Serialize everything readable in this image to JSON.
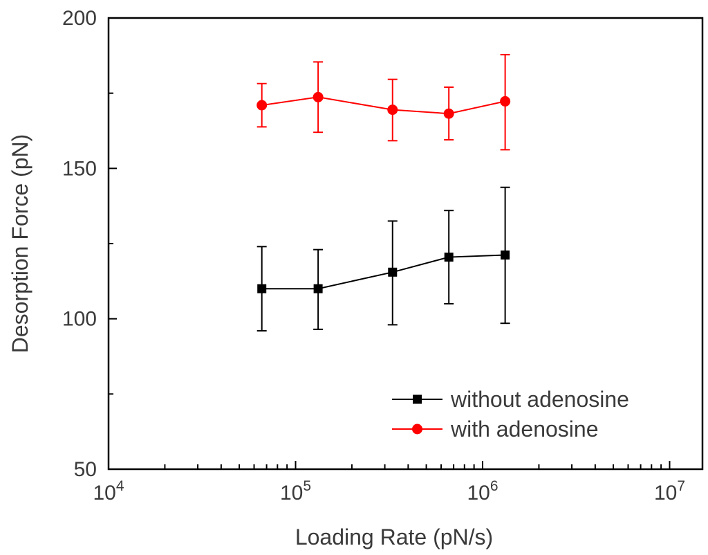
{
  "chart_data": {
    "type": "line",
    "x_scale": "log",
    "xlabel": "Loading Rate (pN/s)",
    "ylabel": "Desorption Force (pN)",
    "xlim": [
      10000,
      15000000
    ],
    "ylim": [
      50,
      200
    ],
    "x_ticks": [
      {
        "value": 10000,
        "base": "10",
        "exp": "4"
      },
      {
        "value": 100000,
        "base": "10",
        "exp": "5"
      },
      {
        "value": 1000000,
        "base": "10",
        "exp": "6"
      },
      {
        "value": 10000000,
        "base": "10",
        "exp": "7"
      }
    ],
    "y_ticks": [
      {
        "value": 50,
        "label": "50"
      },
      {
        "value": 100,
        "label": "100"
      },
      {
        "value": 150,
        "label": "150"
      },
      {
        "value": 200,
        "label": "200"
      }
    ],
    "y_minor_ticks": [
      75,
      125,
      175
    ],
    "legend_position": "bottom-right",
    "series": [
      {
        "name": "without adenosine",
        "color": "#000000",
        "marker": "square",
        "x": [
          66000,
          132000,
          330000,
          660000,
          1320000
        ],
        "y": [
          110,
          110,
          115.5,
          120.5,
          121.2
        ],
        "err_low": [
          96,
          96.5,
          98,
          105,
          98.5
        ],
        "err_high": [
          124,
          123,
          132.5,
          136,
          143.7
        ]
      },
      {
        "name": "with adenosine",
        "color": "#ff0000",
        "marker": "circle",
        "x": [
          66000,
          132000,
          330000,
          660000,
          1320000
        ],
        "y": [
          171,
          173.7,
          169.5,
          168.2,
          172.3
        ],
        "err_low": [
          163.8,
          162,
          159.2,
          159.5,
          156.2
        ],
        "err_high": [
          178.2,
          185.4,
          179.6,
          177,
          187.8
        ]
      }
    ]
  }
}
